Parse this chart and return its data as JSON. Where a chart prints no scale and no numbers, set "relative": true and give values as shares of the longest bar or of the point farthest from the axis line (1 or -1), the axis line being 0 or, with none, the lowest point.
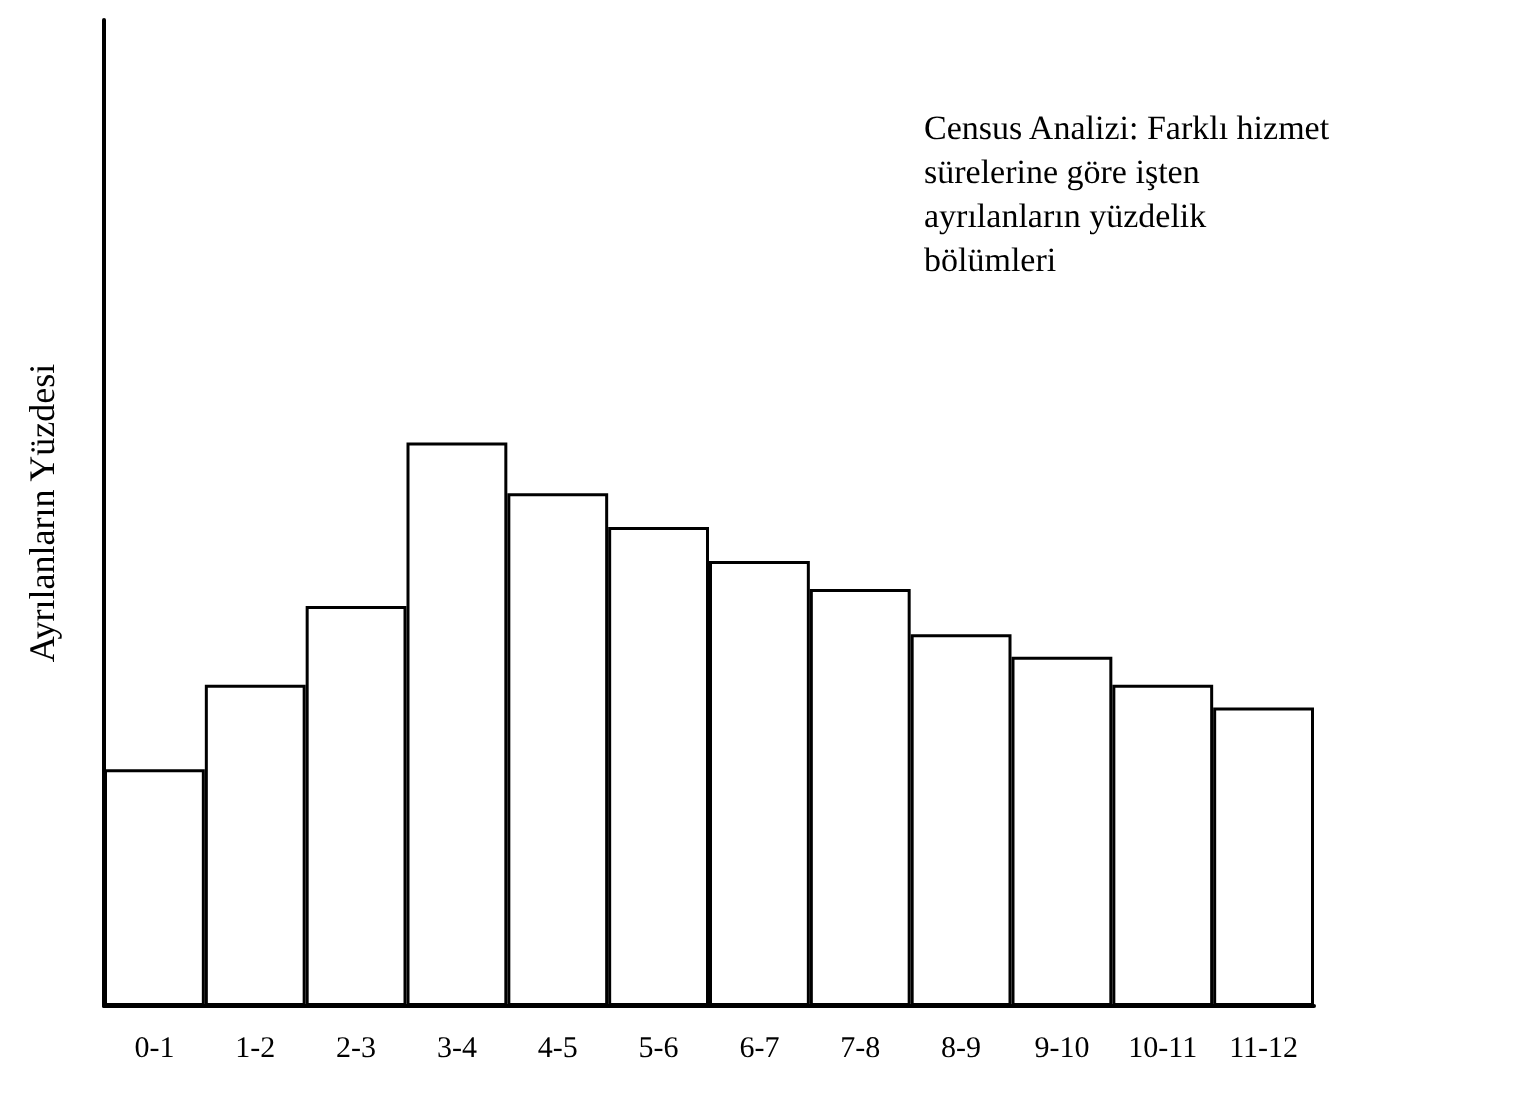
{
  "chart_data": {
    "type": "bar",
    "title": "Census Analizi: Farklı hizmet sürelerine göre işten ayrılanların yüzdelik bölümleri",
    "ylabel": "Ayrılanların Yüzdesi",
    "categories": [
      "0-1",
      "1-2",
      "2-3",
      "3-4",
      "4-5",
      "5-6",
      "6-7",
      "7-8",
      "8-9",
      "9-10",
      "10-11",
      "11-12"
    ],
    "values": [
      0.42,
      0.57,
      0.71,
      1,
      0.91,
      0.85,
      0.79,
      0.74,
      0.66,
      0.62,
      0.57,
      0.53
    ],
    "color": "#ffffff",
    "relative": true
  }
}
